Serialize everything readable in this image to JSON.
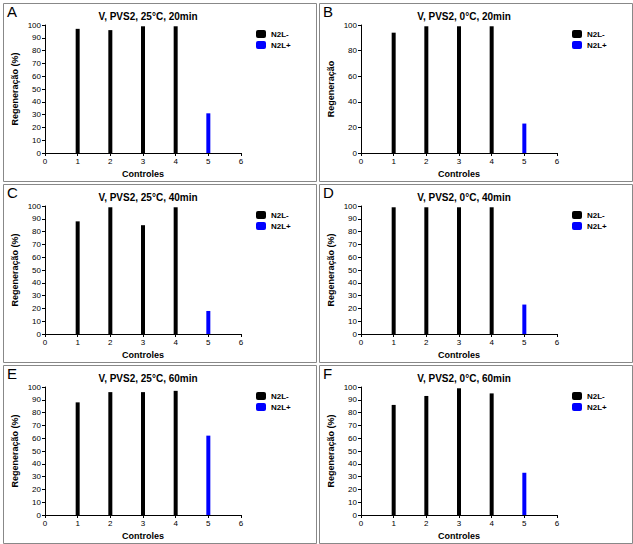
{
  "chart_data": [
    {
      "type": "bar",
      "annotation": "A",
      "title": "V, PVS2, 25°C, 20min",
      "x_label": "Controles",
      "y_label": "Regeneração (%)",
      "series": [
        {
          "name": "N2L-",
          "color": "#000000",
          "x": [
            1,
            2,
            3,
            4
          ],
          "values": [
            97,
            96,
            99,
            99
          ]
        },
        {
          "name": "N2L+",
          "color": "#0000ff",
          "x": [
            5
          ],
          "values": [
            31
          ]
        }
      ],
      "xlim": [
        0,
        6
      ],
      "xticks": [
        0,
        1,
        2,
        3,
        4,
        5,
        6
      ],
      "ylim": [
        0,
        100
      ],
      "yticks": [
        0,
        10,
        20,
        30,
        40,
        50,
        60,
        70,
        80,
        90,
        100
      ],
      "grid": false,
      "legend": "upper right"
    },
    {
      "type": "bar",
      "annotation": "B",
      "title": "V, PVS2, 0°C, 20min",
      "x_label": "Controles",
      "y_label": "Regeneração",
      "series": [
        {
          "name": "N2L-",
          "color": "#000000",
          "x": [
            1,
            2,
            3,
            4
          ],
          "values": [
            94,
            99,
            99,
            99
          ]
        },
        {
          "name": "N2L+",
          "color": "#0000ff",
          "x": [
            5
          ],
          "values": [
            23
          ]
        }
      ],
      "xlim": [
        0,
        6
      ],
      "xticks": [
        0,
        1,
        2,
        3,
        4,
        5,
        6
      ],
      "ylim": [
        0,
        100
      ],
      "yticks": [
        0,
        20,
        40,
        60,
        80,
        100
      ],
      "grid": false,
      "legend": "upper right"
    },
    {
      "type": "bar",
      "annotation": "C",
      "title": "V, PVS2, 25°C, 40min",
      "x_label": "Controles",
      "y_label": "Regeneração (%)",
      "series": [
        {
          "name": "N2L-",
          "color": "#000000",
          "x": [
            1,
            2,
            3,
            4
          ],
          "values": [
            88,
            99,
            85,
            99
          ]
        },
        {
          "name": "N2L+",
          "color": "#0000ff",
          "x": [
            5
          ],
          "values": [
            18
          ]
        }
      ],
      "xlim": [
        0,
        6
      ],
      "xticks": [
        0,
        1,
        2,
        3,
        4,
        5,
        6
      ],
      "ylim": [
        0,
        100
      ],
      "yticks": [
        0,
        10,
        20,
        30,
        40,
        50,
        60,
        70,
        80,
        90,
        100
      ],
      "grid": false,
      "legend": "upper right"
    },
    {
      "type": "bar",
      "annotation": "D",
      "title": "V, PVS2, 0°C, 40min",
      "x_label": "Controles",
      "y_label": "Regeneração (%)",
      "series": [
        {
          "name": "N2L-",
          "color": "#000000",
          "x": [
            1,
            2,
            3,
            4
          ],
          "values": [
            99,
            99,
            99,
            99
          ]
        },
        {
          "name": "N2L+",
          "color": "#0000ff",
          "x": [
            5
          ],
          "values": [
            23
          ]
        }
      ],
      "xlim": [
        0,
        6
      ],
      "xticks": [
        0,
        1,
        2,
        3,
        4,
        5,
        6
      ],
      "ylim": [
        0,
        100
      ],
      "yticks": [
        0,
        10,
        20,
        30,
        40,
        50,
        60,
        70,
        80,
        90,
        100
      ],
      "grid": false,
      "legend": "upper right"
    },
    {
      "type": "bar",
      "annotation": "E",
      "title": "V, PVS2, 25°C, 60min",
      "x_label": "Controles",
      "y_label": "Regeneração (%)",
      "series": [
        {
          "name": "N2L-",
          "color": "#000000",
          "x": [
            1,
            2,
            3,
            4
          ],
          "values": [
            88,
            96,
            96,
            97
          ]
        },
        {
          "name": "N2L+",
          "color": "#0000ff",
          "x": [
            5
          ],
          "values": [
            62
          ]
        }
      ],
      "xlim": [
        0,
        6
      ],
      "xticks": [
        0,
        1,
        2,
        3,
        4,
        5,
        6
      ],
      "ylim": [
        0,
        100
      ],
      "yticks": [
        0,
        10,
        20,
        30,
        40,
        50,
        60,
        70,
        80,
        90,
        100
      ],
      "grid": false,
      "legend": "upper right"
    },
    {
      "type": "bar",
      "annotation": "F",
      "title": "V, PVS2, 0°C, 60min",
      "x_label": "Controles",
      "y_label": "Regeneração (%)",
      "series": [
        {
          "name": "N2L-",
          "color": "#000000",
          "x": [
            1,
            2,
            3,
            4
          ],
          "values": [
            86,
            93,
            99,
            95
          ]
        },
        {
          "name": "N2L+",
          "color": "#0000ff",
          "x": [
            5
          ],
          "values": [
            33
          ]
        }
      ],
      "xlim": [
        0,
        6
      ],
      "xticks": [
        0,
        1,
        2,
        3,
        4,
        5,
        6
      ],
      "ylim": [
        0,
        100
      ],
      "yticks": [
        0,
        10,
        20,
        30,
        40,
        50,
        60,
        70,
        80,
        90,
        100
      ],
      "grid": false,
      "legend": "upper right"
    }
  ]
}
